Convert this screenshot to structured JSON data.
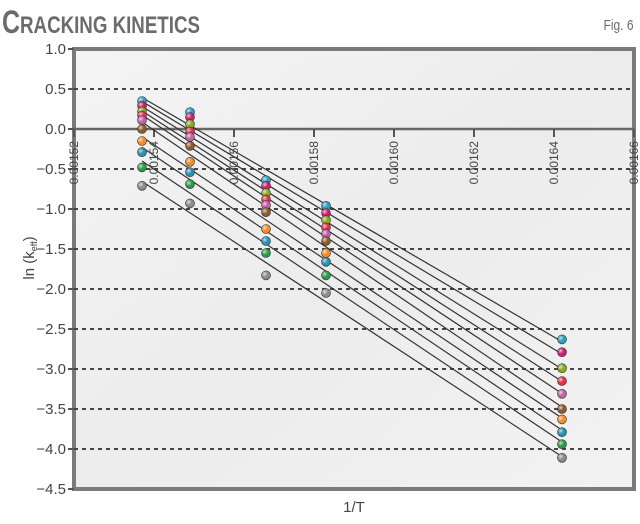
{
  "header": {
    "title_first_letter": "C",
    "title_rest": "RACKING KINETICS",
    "figure_label": "Fig. 6"
  },
  "chart_data": {
    "type": "scatter",
    "title": "Cracking kinetics",
    "figure_label": "Fig. 6",
    "xlabel": "1/T",
    "ylabel": "ln (k_eff)",
    "xlim": [
      0.00152,
      0.00166
    ],
    "ylim": [
      -4.5,
      1.0
    ],
    "x_ticks": [
      "0.00152",
      "0.00154",
      "0.00156",
      "0.00158",
      "0.00160",
      "0.00162",
      "0.00164",
      "0.00166"
    ],
    "y_ticks": [
      "1.0",
      "0.5",
      "0.0",
      "-0.5",
      "-1.0",
      "-1.5",
      "-2.0",
      "-2.5",
      "-3.0",
      "-3.5",
      "-4.0",
      "-4.5"
    ],
    "grid": "horizontal dashed",
    "legend": "none",
    "x": [
      0.001537,
      0.001549,
      0.001568,
      0.001583,
      0.001642
    ],
    "series": [
      {
        "name": "series-1",
        "color": "#2a9fbf",
        "values": [
          0.35,
          0.21,
          -0.64,
          -0.96,
          -2.63
        ]
      },
      {
        "name": "series-2",
        "color": "#c8206f",
        "values": [
          0.29,
          0.15,
          -0.71,
          -1.05,
          -2.79
        ]
      },
      {
        "name": "series-3",
        "color": "#8aa820",
        "values": [
          0.22,
          0.06,
          -0.8,
          -1.14,
          -2.99
        ]
      },
      {
        "name": "series-4",
        "color": "#e0304a",
        "values": [
          0.17,
          -0.03,
          -0.88,
          -1.23,
          -3.15
        ]
      },
      {
        "name": "series-5",
        "color": "#c060a8",
        "values": [
          0.11,
          -0.1,
          -0.95,
          -1.31,
          -3.31
        ]
      },
      {
        "name": "series-6",
        "color": "#8a5a2a",
        "values": [
          0.0,
          -0.21,
          -1.04,
          -1.4,
          -3.5
        ]
      },
      {
        "name": "series-7",
        "color": "#f08a2a",
        "values": [
          -0.15,
          -0.41,
          -1.25,
          -1.55,
          -3.63
        ]
      },
      {
        "name": "series-8",
        "color": "#2a8fb0",
        "values": [
          -0.29,
          -0.54,
          -1.4,
          -1.66,
          -3.79
        ]
      },
      {
        "name": "series-9",
        "color": "#2a9a4a",
        "values": [
          -0.48,
          -0.69,
          -1.55,
          -1.83,
          -3.94
        ]
      },
      {
        "name": "series-10",
        "color": "#8a8a8a",
        "values": [
          -0.71,
          -0.93,
          -1.83,
          -2.05,
          -4.11
        ]
      }
    ],
    "fit_lines": "linear regression line per series"
  }
}
